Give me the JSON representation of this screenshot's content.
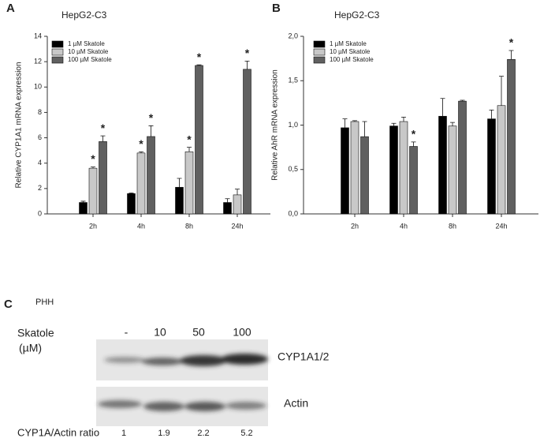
{
  "chart_data": [
    {
      "type": "bar",
      "panel": "A",
      "subtitle": "HepG2-C3",
      "ylabel": "Relative CYP1A1 mRNA expression",
      "categories": [
        "2h",
        "4h",
        "8h",
        "24h"
      ],
      "series": [
        {
          "name": "1 µM Skatole",
          "color": "#000000",
          "values": [
            0.9,
            1.6,
            2.1,
            0.9
          ],
          "errors": [
            0.1,
            0.05,
            0.7,
            0.3
          ]
        },
        {
          "name": "10 µM Skatole",
          "color": "#c8c8c8",
          "values": [
            3.6,
            4.8,
            4.9,
            1.5
          ],
          "errors": [
            0.1,
            0.1,
            0.35,
            0.45
          ]
        },
        {
          "name": "100 µM Skatole",
          "color": "#606060",
          "values": [
            5.7,
            6.1,
            11.7,
            11.4
          ],
          "errors": [
            0.45,
            0.85,
            0.05,
            0.65
          ]
        }
      ],
      "annotations": [
        {
          "text": "*",
          "series": 1,
          "index": 0
        },
        {
          "text": "*",
          "series": 2,
          "index": 0
        },
        {
          "text": "*",
          "series": 1,
          "index": 1
        },
        {
          "text": "*",
          "series": 2,
          "index": 1
        },
        {
          "text": "*",
          "series": 1,
          "index": 2
        },
        {
          "text": "*",
          "series": 2,
          "index": 2
        },
        {
          "text": "*",
          "series": 2,
          "index": 3
        }
      ],
      "ylim": [
        0,
        14
      ],
      "yticks": [
        0,
        2,
        4,
        6,
        8,
        10,
        12,
        14
      ],
      "legend": "upper left"
    },
    {
      "type": "bar",
      "panel": "B",
      "subtitle": "HepG2-C3",
      "ylabel": "Relative AhR mRNA expression",
      "categories": [
        "2h",
        "4h",
        "8h",
        "24h"
      ],
      "series": [
        {
          "name": "1 µM Skatole",
          "color": "#000000",
          "values": [
            0.97,
            0.99,
            1.1,
            1.07
          ],
          "errors": [
            0.1,
            0.03,
            0.2,
            0.1
          ]
        },
        {
          "name": "10 µM Skatole",
          "color": "#c8c8c8",
          "values": [
            1.04,
            1.04,
            0.99,
            1.22
          ],
          "errors": [
            0.01,
            0.05,
            0.04,
            0.33
          ]
        },
        {
          "name": "100 µM Skatole",
          "color": "#606060",
          "values": [
            0.87,
            0.76,
            1.27,
            1.74
          ],
          "errors": [
            0.17,
            0.05,
            0.01,
            0.1
          ]
        }
      ],
      "annotations": [
        {
          "text": "*",
          "series": 2,
          "index": 1
        },
        {
          "text": "*",
          "series": 2,
          "index": 3
        }
      ],
      "ylim": [
        0,
        2
      ],
      "yticks": [
        {
          "value": 0,
          "label": "0,0"
        },
        {
          "value": 0.5,
          "label": "0,5"
        },
        {
          "value": 1,
          "label": "1,0"
        },
        {
          "value": 1.5,
          "label": "1,5"
        },
        {
          "value": 2,
          "label": "2,0"
        }
      ],
      "legend": "upper left"
    }
  ],
  "blot": {
    "panel": "C",
    "source": "PHH",
    "treatment": "Skatole",
    "unit": "(µM)",
    "lanes": [
      "-",
      "10",
      "50",
      "100"
    ],
    "bands": [
      "CYP1A1/2",
      "Actin"
    ],
    "ratio_label": "CYP1A/Actin ratio",
    "ratios": [
      "1",
      "1.9",
      "2.2",
      "5.2"
    ]
  }
}
